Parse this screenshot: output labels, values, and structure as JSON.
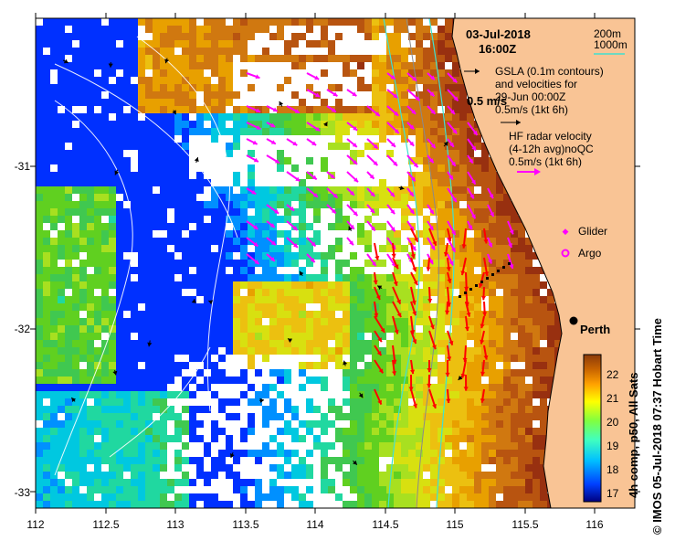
{
  "map": {
    "date_label": "03-Jul-2018",
    "time_label": "16:00Z",
    "depth_contours": [
      {
        "label": "200m",
        "color": "#7f7f7f"
      },
      {
        "label": "1000m",
        "color": "#40e0d0"
      }
    ],
    "legend": {
      "gsla_label_1": "GSLA (0.1m contours)",
      "gsla_label_2": "and velocities for",
      "gsla_label_3": "29-Jun 00:00Z",
      "gsla_scale_label": "0.5 m/s",
      "gsla_scale_label_2": "0.5m/s (1kt 6h)",
      "hf_label_1": "HF radar velocity",
      "hf_label_2": "(4-12h avg)noQC",
      "hf_label_3": "0.5m/s (1kt 6h)",
      "glider_label": "Glider",
      "argo_label": "Argo",
      "colors": {
        "gsla_arrow": "#000000",
        "hf_arrow": "#ff00ff",
        "glider": "#ff00ff",
        "argo": "#ff00ff"
      }
    },
    "city": {
      "name": "Perth",
      "lon": 115.86,
      "lat": -31.95
    },
    "x_axis": {
      "ticks": [
        "112",
        "112.5",
        "113",
        "113.5",
        "114",
        "114.5",
        "115",
        "115.5",
        "116"
      ]
    },
    "y_axis": {
      "ticks": [
        "-31",
        "-32",
        "-33"
      ]
    },
    "colorbar": {
      "label": "4h comp, p50, All Sats",
      "ticks": [
        "17",
        "18",
        "19",
        "20",
        "21",
        "22"
      ],
      "range": [
        16.6,
        22.8
      ],
      "colors": [
        "#00007f",
        "#0040ff",
        "#00c0ff",
        "#40ffbf",
        "#80ff40",
        "#ffff00",
        "#ffa000",
        "#c86400",
        "#8b3a0a"
      ]
    },
    "credit": "© IMOS 05-Jul-2018 07:37 Hobart Time",
    "colors": {
      "land": "#f9c495",
      "coast": "#000000",
      "frame": "#000000"
    }
  }
}
